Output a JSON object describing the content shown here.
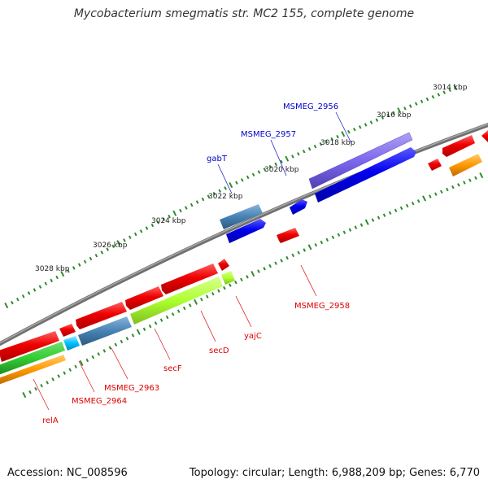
{
  "title": "Mycobacterium smegmatis str. MC2 155, complete genome",
  "footer": {
    "accession": "Accession: NC_008596",
    "summary": "Topology: circular; Length: 6,988,209 bp; Genes: 6,770"
  },
  "colors": {
    "backbone": "#808080",
    "tick": "#2e8b2e",
    "label_blue": "#0000cc",
    "label_red": "#dd0000"
  },
  "ticks": [
    {
      "label": "3014 kbp"
    },
    {
      "label": "3016 kbp"
    },
    {
      "label": "3018 kbp"
    },
    {
      "label": "3020 kbp"
    },
    {
      "label": "3022 kbp"
    },
    {
      "label": "3024 kbp"
    },
    {
      "label": "3026 kbp"
    },
    {
      "label": "3028 kbp"
    }
  ],
  "gene_labels": [
    {
      "name": "MSMEG_2956",
      "color": "#0000cc"
    },
    {
      "name": "MSMEG_2957",
      "color": "#0000cc"
    },
    {
      "name": "gabT",
      "color": "#0000cc"
    },
    {
      "name": "MSMEG_2958",
      "color": "#dd0000"
    },
    {
      "name": "yajC",
      "color": "#dd0000"
    },
    {
      "name": "secD",
      "color": "#dd0000"
    },
    {
      "name": "secF",
      "color": "#dd0000"
    },
    {
      "name": "MSMEG_2963",
      "color": "#dd0000"
    },
    {
      "name": "MSMEG_2964",
      "color": "#dd0000"
    },
    {
      "name": "relA",
      "color": "#dd0000"
    }
  ]
}
